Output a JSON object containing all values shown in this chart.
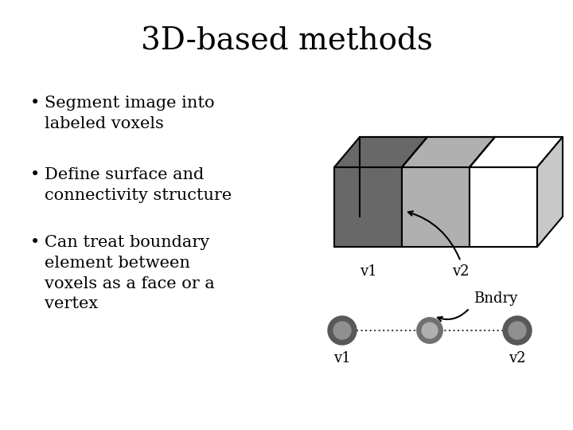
{
  "title": "3D-based methods",
  "title_fontsize": 28,
  "bg_color": "#ffffff",
  "text_color": "#000000",
  "dark_gray": "#686868",
  "light_gray": "#b0b0b0",
  "side_gray": "#c8c8c8",
  "bullet_points": [
    "Segment image into\nlabeled voxels",
    "Define surface and\nconnectivity structure",
    "Can treat boundary\nelement between\nvoxels as a face or a\nvertex"
  ],
  "bullet_fontsize": 15,
  "node_dark": "#585858",
  "node_mid": "#909090",
  "node_light": "#b0b0b0"
}
